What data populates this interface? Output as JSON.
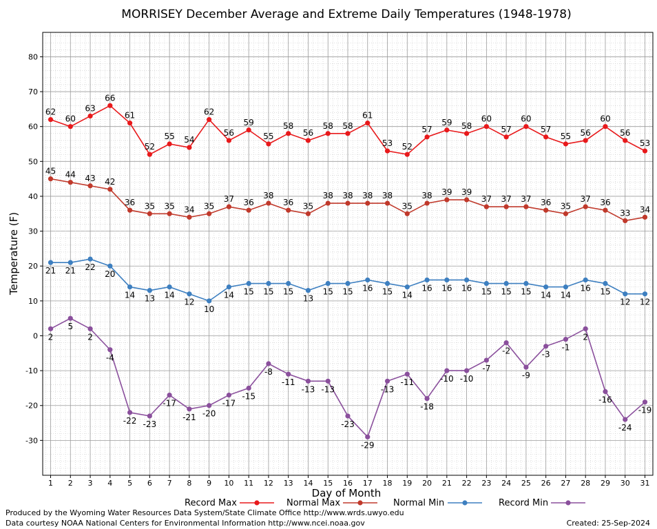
{
  "chart_data": {
    "type": "line",
    "title": "MORRISEY December Average and Extreme Daily Temperatures (1948-1978)",
    "xlabel": "Day of Month",
    "ylabel": "Temperature (F)",
    "ylim": [
      -40,
      87
    ],
    "yticks": [
      -30,
      -20,
      -10,
      0,
      10,
      20,
      30,
      40,
      50,
      60,
      70,
      80
    ],
    "grid": true,
    "legend_position": "bottom",
    "x": [
      1,
      2,
      3,
      4,
      5,
      6,
      7,
      8,
      9,
      10,
      11,
      12,
      13,
      14,
      15,
      16,
      17,
      18,
      19,
      20,
      21,
      22,
      23,
      24,
      25,
      26,
      27,
      28,
      29,
      30,
      31
    ],
    "series": [
      {
        "name": "Record Max",
        "color": "#e8191b",
        "label_pos": "above",
        "values": [
          62,
          60,
          63,
          66,
          61,
          52,
          55,
          54,
          62,
          56,
          59,
          55,
          58,
          56,
          58,
          58,
          61,
          53,
          52,
          57,
          59,
          58,
          60,
          57,
          60,
          57,
          55,
          56,
          60,
          56,
          53
        ]
      },
      {
        "name": "Normal Max",
        "color": "#c0392b",
        "label_pos": "above",
        "values": [
          45,
          44,
          43,
          42,
          36,
          35,
          35,
          34,
          35,
          37,
          36,
          38,
          36,
          35,
          38,
          38,
          38,
          38,
          35,
          38,
          39,
          39,
          37,
          37,
          37,
          36,
          35,
          37,
          36,
          33,
          34
        ]
      },
      {
        "name": "Normal Min",
        "color": "#3d7fc0",
        "label_pos": "below",
        "values": [
          21,
          21,
          22,
          20,
          14,
          13,
          14,
          12,
          10,
          14,
          15,
          15,
          15,
          13,
          15,
          15,
          16,
          15,
          14,
          16,
          16,
          16,
          15,
          15,
          15,
          14,
          14,
          16,
          15,
          12,
          12
        ]
      },
      {
        "name": "Record Min",
        "color": "#8a4f9c",
        "label_pos": "below",
        "values": [
          2,
          5,
          2,
          -4,
          -22,
          -23,
          -17,
          -21,
          -20,
          -17,
          -15,
          -8,
          -11,
          -13,
          -13,
          -23,
          -29,
          -13,
          -11,
          -18,
          -10,
          -10,
          -7,
          -2,
          -9,
          -3,
          -1,
          2,
          -16,
          -24,
          -19
        ]
      }
    ]
  },
  "footer": {
    "produced_by": "Produced by the Wyoming Water Resources Data System/State Climate Office http://www.wrds.uwyo.edu",
    "courtesy": "Data courtesy NOAA National Centers for Environmental Information http://www.ncei.noaa.gov",
    "created": "Created:  25-Sep-2024"
  }
}
